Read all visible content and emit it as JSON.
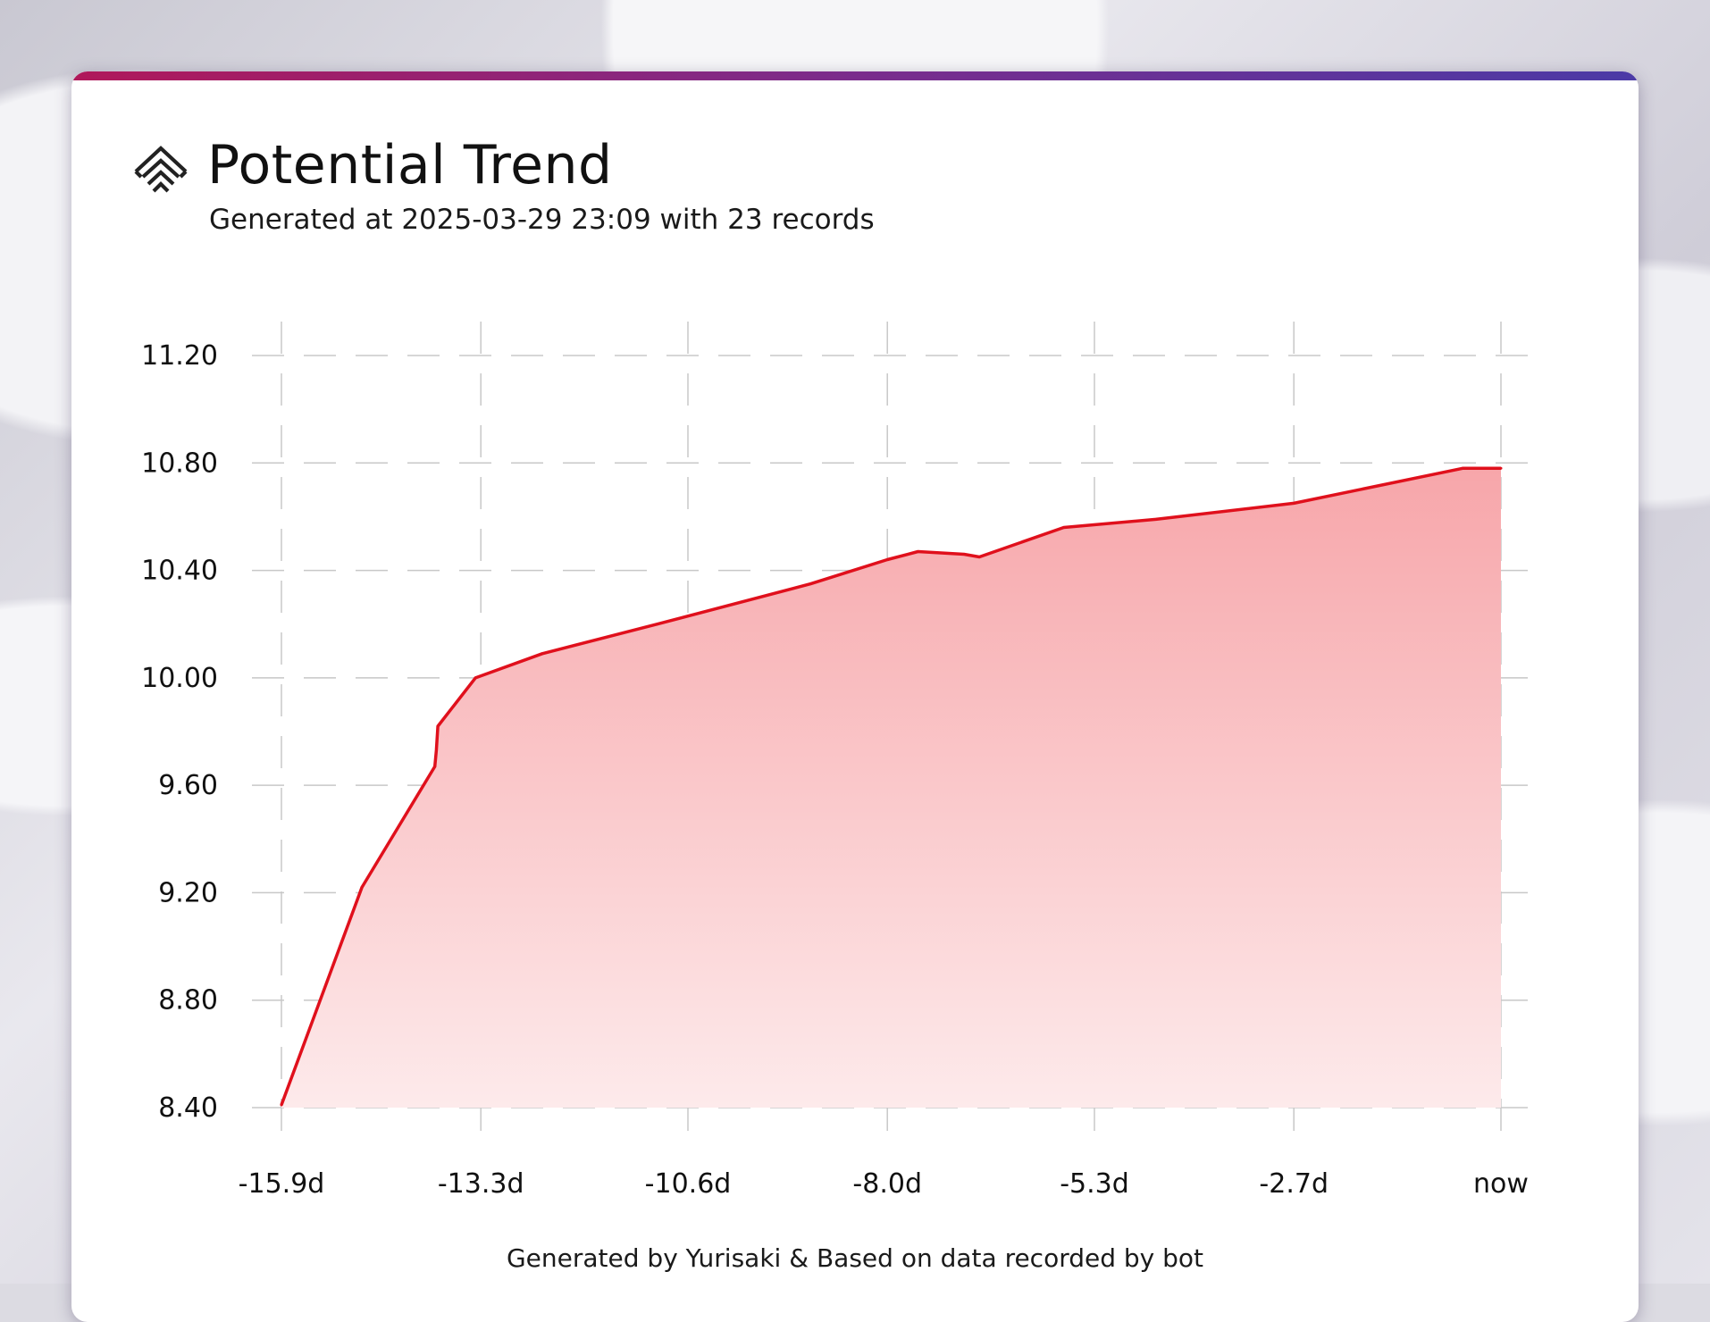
{
  "header": {
    "title": "Potential Trend",
    "subtitle": "Generated at 2025-03-29 23:09 with 23 records",
    "icon": "chevrons-up-diamond-icon"
  },
  "footer": {
    "text": "Generated by Yurisaki & Based on data recorded by bot"
  },
  "colors": {
    "line": "#e0101c",
    "fill_top": "#f7a6aa",
    "fill_bottom": "#fdeaeb",
    "grid": "#c8c8c8"
  },
  "chart_data": {
    "type": "area",
    "title": "",
    "xlabel": "",
    "ylabel": "",
    "x_unit": "days",
    "xlim": [
      -15.9,
      0
    ],
    "ylim": [
      8.4,
      11.2
    ],
    "x_ticks": [
      {
        "value": -15.9,
        "label": "-15.9d"
      },
      {
        "value": -13.3,
        "label": "-13.3d"
      },
      {
        "value": -10.6,
        "label": "-10.6d"
      },
      {
        "value": -8.0,
        "label": "-8.0d"
      },
      {
        "value": -5.3,
        "label": "-5.3d"
      },
      {
        "value": -2.7,
        "label": "-2.7d"
      },
      {
        "value": 0,
        "label": "now"
      }
    ],
    "y_ticks": [
      {
        "value": 11.2,
        "label": "11.20"
      },
      {
        "value": 10.8,
        "label": "10.80"
      },
      {
        "value": 10.4,
        "label": "10.40"
      },
      {
        "value": 10.0,
        "label": "10.00"
      },
      {
        "value": 9.6,
        "label": "9.60"
      },
      {
        "value": 9.2,
        "label": "9.20"
      },
      {
        "value": 8.8,
        "label": "8.80"
      },
      {
        "value": 8.4,
        "label": "8.40"
      }
    ],
    "grid": true,
    "series": [
      {
        "points": [
          {
            "x": -15.9,
            "y": 8.41
          },
          {
            "x": -14.85,
            "y": 9.22
          },
          {
            "x": -13.9,
            "y": 9.67
          },
          {
            "x": -13.88,
            "y": 9.73
          },
          {
            "x": -13.86,
            "y": 9.82
          },
          {
            "x": -13.37,
            "y": 10.0
          },
          {
            "x": -12.5,
            "y": 10.09
          },
          {
            "x": -11.0,
            "y": 10.2
          },
          {
            "x": -9.0,
            "y": 10.35
          },
          {
            "x": -8.0,
            "y": 10.44
          },
          {
            "x": -7.6,
            "y": 10.47
          },
          {
            "x": -7.0,
            "y": 10.46
          },
          {
            "x": -6.8,
            "y": 10.45
          },
          {
            "x": -5.7,
            "y": 10.56
          },
          {
            "x": -4.5,
            "y": 10.59
          },
          {
            "x": -2.7,
            "y": 10.65
          },
          {
            "x": -0.5,
            "y": 10.78
          },
          {
            "x": 0,
            "y": 10.78
          }
        ]
      }
    ]
  }
}
